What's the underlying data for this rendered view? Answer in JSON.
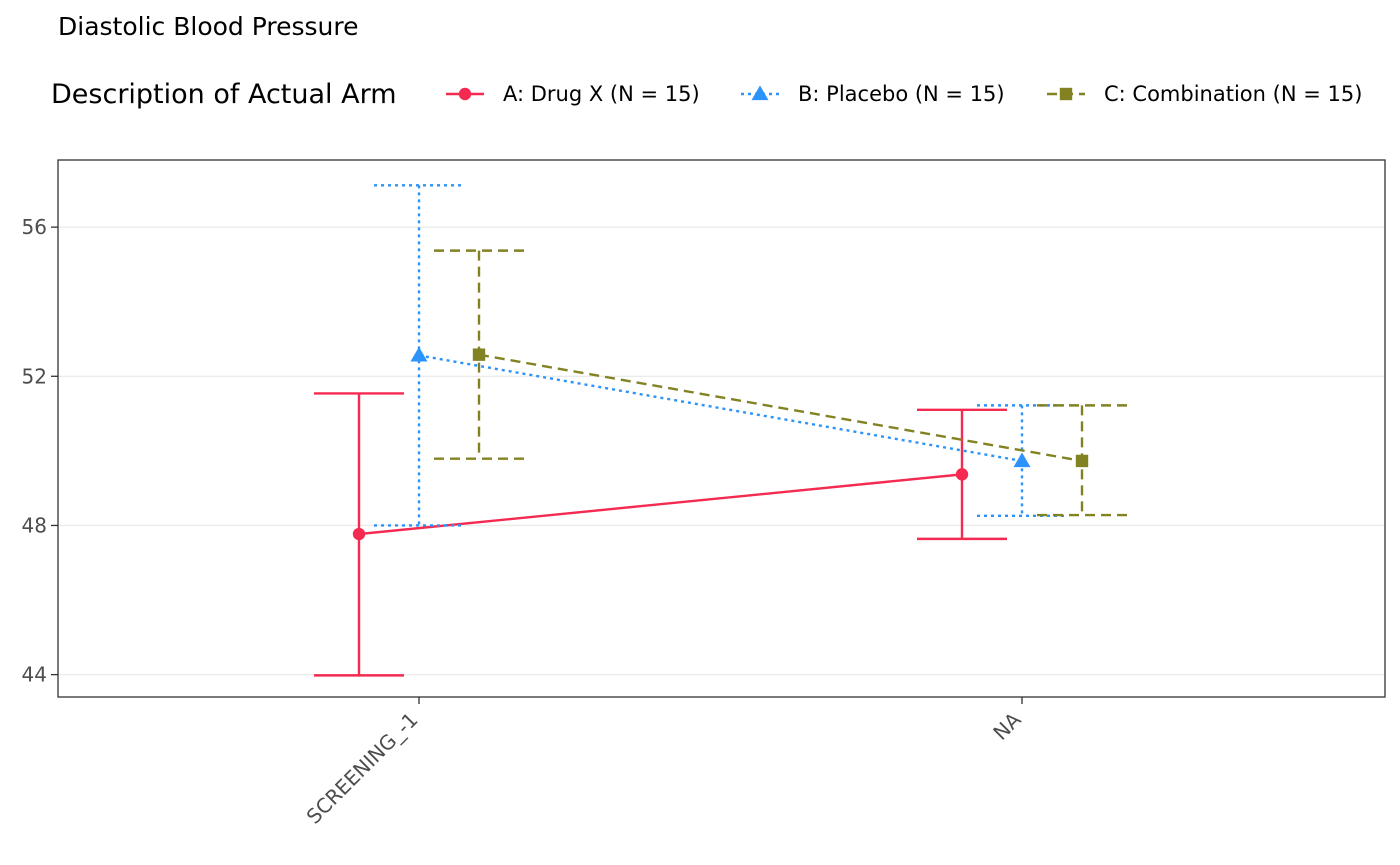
{
  "chart_data": {
    "type": "line",
    "title": "Diastolic Blood Pressure",
    "legend": {
      "title": "Description of Actual Arm",
      "position": "top"
    },
    "xlabel": "",
    "ylabel": "",
    "categories": [
      "SCREENING_-1",
      "NA"
    ],
    "y_ticks": [
      44,
      48,
      52,
      56
    ],
    "ylim": [
      43.4,
      57.8
    ],
    "grid": "horizontal major only",
    "error_bars": true,
    "series": [
      {
        "name": "A: Drug X (N = 15)",
        "color": "#f52a50",
        "line_style": "solid",
        "marker": "circle",
        "mean": [
          47.77,
          49.37
        ],
        "lower": [
          43.98,
          47.64
        ],
        "upper": [
          51.54,
          51.1
        ]
      },
      {
        "name": "B: Placebo (N = 15)",
        "color": "#2b93fa",
        "line_style": "dotted",
        "marker": "triangle",
        "mean": [
          52.56,
          49.73
        ],
        "lower": [
          48.0,
          48.26
        ],
        "upper": [
          57.12,
          51.22
        ]
      },
      {
        "name": "C: Combination (N = 15)",
        "color": "#838223",
        "line_style": "dashed",
        "marker": "square",
        "mean": [
          52.58,
          49.73
        ],
        "lower": [
          49.79,
          48.28
        ],
        "upper": [
          55.37,
          51.22
        ]
      }
    ]
  }
}
